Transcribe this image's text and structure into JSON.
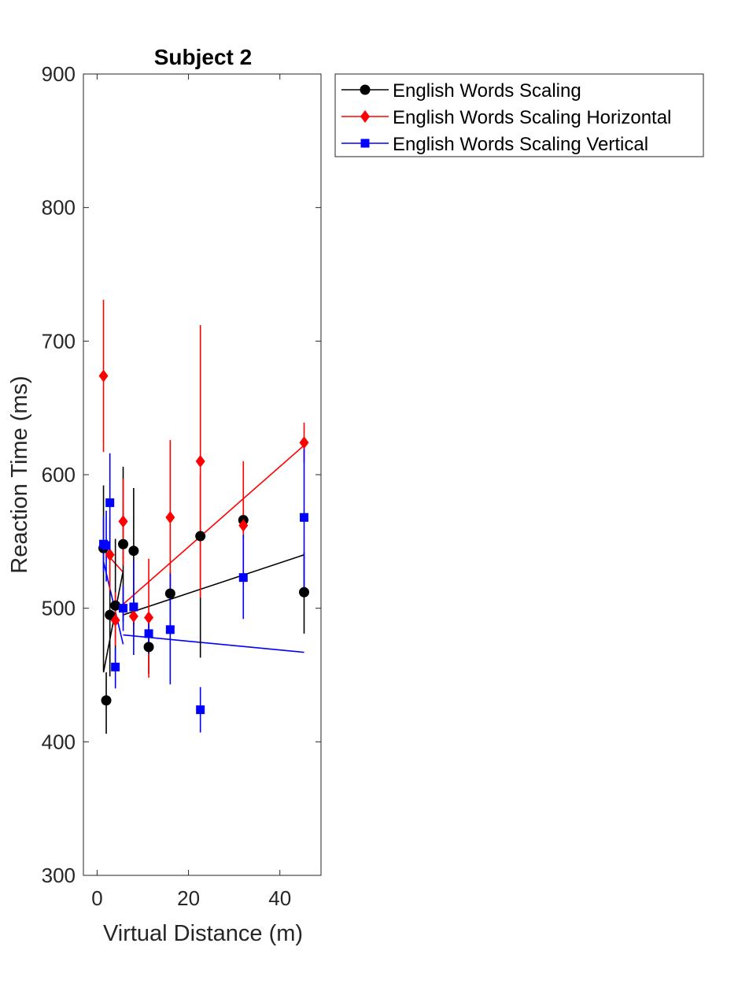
{
  "chart_data": {
    "type": "scatter",
    "title": "Subject 2",
    "xlabel": "Virtual Distance (m)",
    "ylabel": "Reaction Time (ms)",
    "xlim": [
      -3,
      49
    ],
    "ylim": [
      300,
      900
    ],
    "xticks": [
      0,
      20,
      40
    ],
    "yticks": [
      300,
      400,
      500,
      600,
      700,
      800,
      900
    ],
    "grid": false,
    "legend_position": "outside top-right",
    "series": [
      {
        "name": "English Words Scaling",
        "color": "#000000",
        "marker": "circle",
        "points": [
          {
            "x": 1.4,
            "y": 545,
            "lo": 453,
            "hi": 592
          },
          {
            "x": 2.0,
            "y": 431,
            "lo": 406,
            "hi": 452
          },
          {
            "x": 2.8,
            "y": 495,
            "lo": 449,
            "hi": 548
          },
          {
            "x": 4.0,
            "y": 502,
            "lo": 460,
            "hi": 552
          },
          {
            "x": 5.7,
            "y": 548,
            "lo": 490,
            "hi": 606
          },
          {
            "x": 8.0,
            "y": 543,
            "lo": 487,
            "hi": 590
          },
          {
            "x": 11.3,
            "y": 471,
            "lo": 451,
            "hi": 490
          },
          {
            "x": 16.0,
            "y": 511,
            "lo": 487,
            "hi": 528
          },
          {
            "x": 22.6,
            "y": 554,
            "lo": 463,
            "hi": 600
          },
          {
            "x": 32.0,
            "y": 566,
            "lo": 552,
            "hi": 575
          },
          {
            "x": 45.3,
            "y": 512,
            "lo": 481,
            "hi": 542
          }
        ],
        "fit_segments": [
          [
            [
              1.4,
              452
            ],
            [
              5.7,
              528
            ]
          ],
          [
            [
              5.7,
              495
            ],
            [
              45.3,
              540
            ]
          ]
        ]
      },
      {
        "name": "English Words Scaling Horizontal",
        "color": "#ff0000",
        "marker": "diamond",
        "points": [
          {
            "x": 1.4,
            "y": 674,
            "lo": 617,
            "hi": 731
          },
          {
            "x": 2.8,
            "y": 540,
            "lo": 513,
            "hi": 566
          },
          {
            "x": 4.0,
            "y": 491,
            "lo": 472,
            "hi": 512
          },
          {
            "x": 5.7,
            "y": 565,
            "lo": 532,
            "hi": 597
          },
          {
            "x": 8.0,
            "y": 494,
            "lo": 480,
            "hi": 507
          },
          {
            "x": 11.3,
            "y": 493,
            "lo": 448,
            "hi": 537
          },
          {
            "x": 16.0,
            "y": 568,
            "lo": 511,
            "hi": 626
          },
          {
            "x": 22.6,
            "y": 610,
            "lo": 508,
            "hi": 712
          },
          {
            "x": 32.0,
            "y": 562,
            "lo": 515,
            "hi": 610
          },
          {
            "x": 45.3,
            "y": 624,
            "lo": 609,
            "hi": 639
          }
        ],
        "fit_segments": [
          [
            [
              2.8,
              538
            ],
            [
              5.7,
              527
            ]
          ],
          [
            [
              5.7,
              503
            ],
            [
              45.3,
              622
            ]
          ]
        ]
      },
      {
        "name": "English Words Scaling Vertical",
        "color": "#0000ff",
        "marker": "square",
        "points": [
          {
            "x": 1.4,
            "y": 548,
            "lo": 527,
            "hi": 568
          },
          {
            "x": 2.0,
            "y": 547,
            "lo": 520,
            "hi": 573
          },
          {
            "x": 2.8,
            "y": 579,
            "lo": 543,
            "hi": 616
          },
          {
            "x": 4.0,
            "y": 456,
            "lo": 440,
            "hi": 470
          },
          {
            "x": 5.7,
            "y": 500,
            "lo": 483,
            "hi": 517
          },
          {
            "x": 8.0,
            "y": 501,
            "lo": 465,
            "hi": 536
          },
          {
            "x": 11.3,
            "y": 481,
            "lo": 466,
            "hi": 496
          },
          {
            "x": 16.0,
            "y": 484,
            "lo": 443,
            "hi": 526
          },
          {
            "x": 22.6,
            "y": 424,
            "lo": 407,
            "hi": 441
          },
          {
            "x": 32.0,
            "y": 523,
            "lo": 492,
            "hi": 555
          },
          {
            "x": 45.3,
            "y": 568,
            "lo": 513,
            "hi": 625
          }
        ],
        "fit_segments": [
          [
            [
              1.4,
              535
            ],
            [
              5.7,
              473
            ]
          ],
          [
            [
              5.7,
              480
            ],
            [
              45.3,
              467
            ]
          ]
        ]
      }
    ]
  }
}
